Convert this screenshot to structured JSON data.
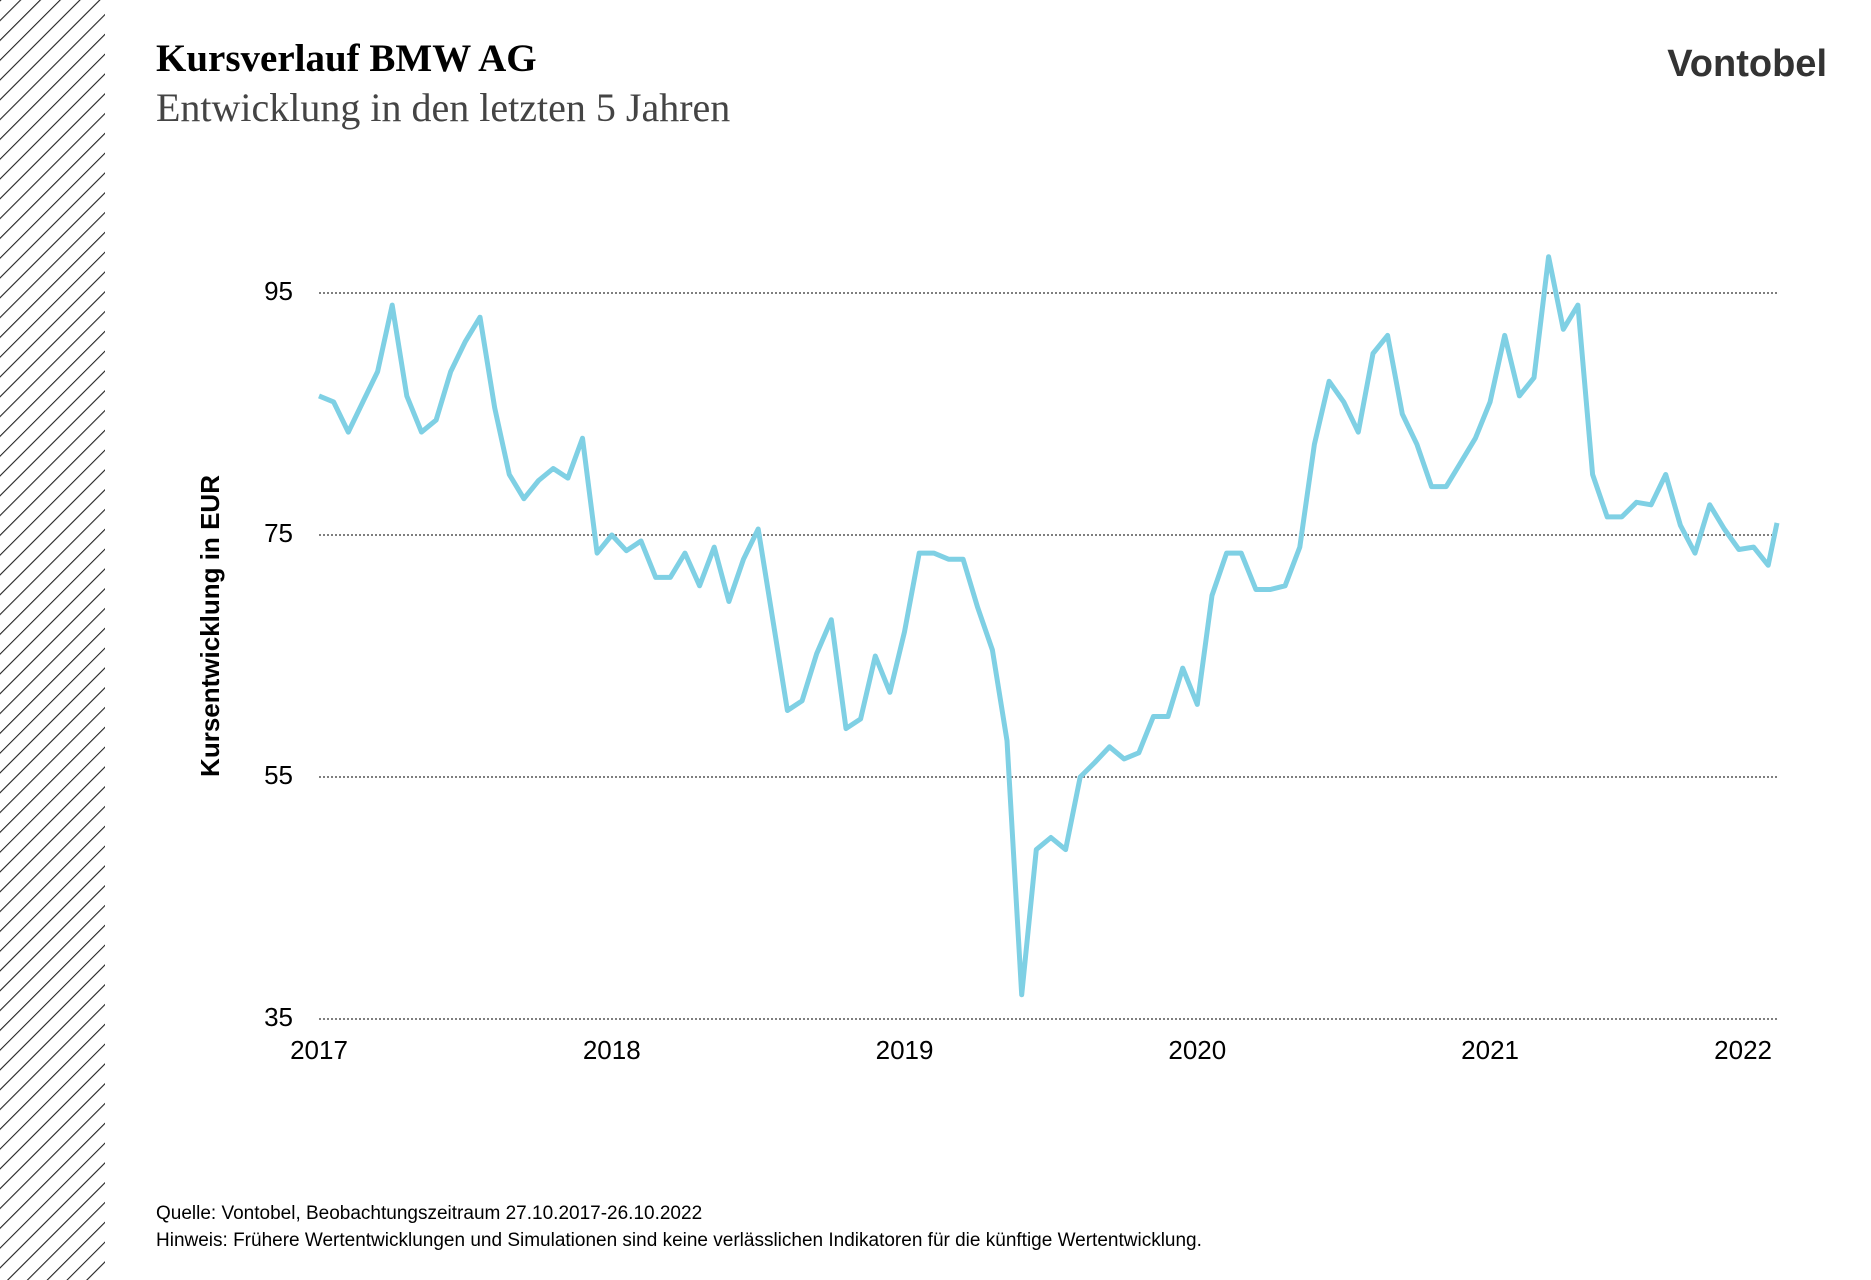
{
  "logo": "Vontobel",
  "chart_data": {
    "type": "line",
    "title": "Kursverlauf BMW AG",
    "subtitle": "Entwicklung in den letzten 5 Jahren",
    "ylabel": "Kursentwicklung in EUR",
    "x": [
      2017,
      2017.05,
      2017.1,
      2017.15,
      2017.2,
      2017.25,
      2017.3,
      2017.35,
      2017.4,
      2017.45,
      2017.5,
      2017.55,
      2017.6,
      2017.65,
      2017.7,
      2017.75,
      2017.8,
      2017.85,
      2017.9,
      2017.95,
      2018,
      2018.05,
      2018.1,
      2018.15,
      2018.2,
      2018.25,
      2018.3,
      2018.35,
      2018.4,
      2018.45,
      2018.5,
      2018.55,
      2018.6,
      2018.65,
      2018.7,
      2018.75,
      2018.8,
      2018.85,
      2018.9,
      2018.95,
      2019,
      2019.05,
      2019.1,
      2019.15,
      2019.2,
      2019.25,
      2019.3,
      2019.35,
      2019.4,
      2019.45,
      2019.5,
      2019.55,
      2019.6,
      2019.65,
      2019.7,
      2019.75,
      2019.8,
      2019.85,
      2019.9,
      2019.95,
      2020,
      2020.05,
      2020.1,
      2020.15,
      2020.2,
      2020.25,
      2020.3,
      2020.35,
      2020.4,
      2020.45,
      2020.5,
      2020.55,
      2020.6,
      2020.65,
      2020.7,
      2020.75,
      2020.8,
      2020.85,
      2020.9,
      2020.95,
      2021,
      2021.05,
      2021.1,
      2021.15,
      2021.2,
      2021.25,
      2021.3,
      2021.35,
      2021.4,
      2021.45,
      2021.5,
      2021.55,
      2021.6,
      2021.65,
      2021.7,
      2021.75,
      2021.8,
      2021.85,
      2021.9,
      2021.95,
      2021.98
    ],
    "series": [
      {
        "name": "BMW AG",
        "color": "#7fd0e4",
        "values": [
          86.5,
          86,
          83.5,
          86,
          88.5,
          94,
          86.5,
          83.5,
          84.5,
          88.5,
          91,
          93,
          85.5,
          80,
          78,
          79.5,
          80.5,
          79.7,
          83,
          73.5,
          75,
          73.7,
          74.5,
          71.5,
          71.5,
          73.5,
          70.8,
          74,
          69.5,
          73,
          75.5,
          68,
          60.5,
          61.3,
          65.2,
          68,
          59,
          59.8,
          65,
          62,
          67,
          73.5,
          73.5,
          73,
          73,
          69,
          65.5,
          58,
          37,
          49,
          50,
          49,
          55,
          56.2,
          57.5,
          56.5,
          57,
          60,
          60,
          64,
          61,
          70,
          73.5,
          73.5,
          70.5,
          70.5,
          70.8,
          74,
          82.5,
          87.7,
          86,
          83.5,
          90,
          91.5,
          85,
          82.5,
          79,
          79,
          81,
          83,
          86,
          91.5,
          86.5,
          88,
          98,
          92,
          94,
          80,
          76.5,
          76.5,
          77.7,
          77.5,
          80,
          75.8,
          73.5,
          77.5,
          75.5,
          73.8,
          74,
          72.5,
          76
        ]
      }
    ],
    "xlim": [
      2017,
      2021.98
    ],
    "xticks": [
      2017,
      2018,
      2019,
      2020,
      2021,
      2022
    ],
    "ylim": [
      35,
      100
    ],
    "yticks": [
      35,
      55,
      75,
      95
    ],
    "grid": true,
    "source": "Quelle: Vontobel, Beobachtungszeitraum 27.10.2017-26.10.2022",
    "note": "Hinweis: Frühere Wertentwicklungen und Simulationen sind keine verlässlichen Indikatoren für die künftige Wertentwicklung."
  }
}
